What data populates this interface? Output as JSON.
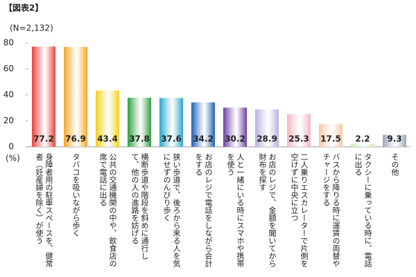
{
  "chart_data": {
    "type": "bar",
    "title": "【図表2】",
    "subtitle": "(N=2,132)",
    "y_unit": "(%)",
    "categories": [
      "身障者用の駐車スペースを、健常者（妊産婦を除く）が使う",
      "タバコを吸いながら歩く",
      "公共の交通機関の中や、飲食店の席で電話に出る",
      "横断歩道や階段を斜めに通行して、他の人の進路を妨げる",
      "狭い歩道で、後ろから来る人を気にせずのんびり歩く",
      "お店のレジで電話をしながら会計をする",
      "人と一緒にいる時にスマホや携帯を使う",
      "お店のレジで、金額を聞いてから財布を探す",
      "二人乗りエスカレーターで片側を空けずに中央に立つ",
      "バスから降りる時に運賃の両替やチャージをする",
      "タクシーに乗っている時に、電話に出る",
      "その他"
    ],
    "values": [
      77.2,
      76.9,
      43.4,
      37.8,
      37.6,
      34.2,
      30.2,
      28.9,
      25.3,
      17.5,
      2.2,
      9.3
    ],
    "colors": [
      "#e8413c",
      "#f5a623",
      "#f2d019",
      "#2e9e3e",
      "#2aa7c9",
      "#1f5fb5",
      "#6a3fa0",
      "#b9b0e0",
      "#f2b6c0",
      "#f5c9a6",
      "#cfe8b8",
      "#9aa6bf"
    ],
    "ylim": [
      0,
      80
    ],
    "yticks": [
      0,
      20,
      40,
      60,
      80
    ],
    "grid": false
  }
}
